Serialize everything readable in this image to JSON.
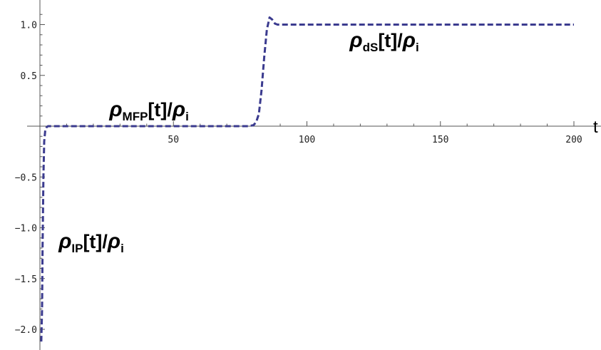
{
  "chart_data": {
    "type": "line",
    "title": "",
    "xlabel": "t",
    "ylabel": "",
    "xlim": [
      0,
      208
    ],
    "ylim": [
      -2.2,
      1.2
    ],
    "xticks": [
      50,
      100,
      150,
      200
    ],
    "xtick_labels": [
      "50",
      "100",
      "150",
      "200"
    ],
    "yticks": [
      -2.0,
      -1.5,
      -1.0,
      -0.5,
      0.5,
      1.0
    ],
    "ytick_labels": [
      "-2.0",
      "-1.5",
      "-1.0",
      "-0.5",
      "0.5",
      "1.0"
    ],
    "grid": false,
    "series": [
      {
        "style": "dashed",
        "color": "#3b3b8f",
        "x": [
          0.5,
          0.8,
          1.0,
          1.3,
          1.6,
          2.0,
          2.5,
          3.0,
          5,
          10,
          20,
          40,
          60,
          70,
          78,
          80,
          81,
          82,
          83,
          84,
          85,
          86,
          87,
          88,
          89,
          90,
          92,
          95,
          100,
          150,
          200
        ],
        "y": [
          -2.12,
          -1.8,
          -1.2,
          -0.5,
          -0.15,
          -0.04,
          -0.01,
          0.0,
          0.0,
          0.0,
          0.0,
          0.0,
          0.0,
          0.0,
          0.0,
          0.01,
          0.04,
          0.12,
          0.35,
          0.68,
          0.95,
          1.07,
          1.05,
          1.01,
          1.0,
          1.0,
          1.0,
          1.0,
          1.0,
          1.0,
          1.0
        ]
      }
    ],
    "annotations": [
      {
        "id": "ip",
        "base": "ρ",
        "sub": "IP",
        "mid": "[t]/",
        "base2": "ρ",
        "sub2": "i",
        "x": 7,
        "y": -1.2
      },
      {
        "id": "mfp",
        "base": "ρ",
        "sub": "MFP",
        "mid": "[t]/",
        "base2": "ρ",
        "sub2": "i",
        "x": 26,
        "y": 0.1
      },
      {
        "id": "ds",
        "base": "ρ",
        "sub": "dS",
        "mid": "[t]/",
        "base2": "ρ",
        "sub2": "i",
        "x": 116,
        "y": 0.78
      }
    ]
  }
}
